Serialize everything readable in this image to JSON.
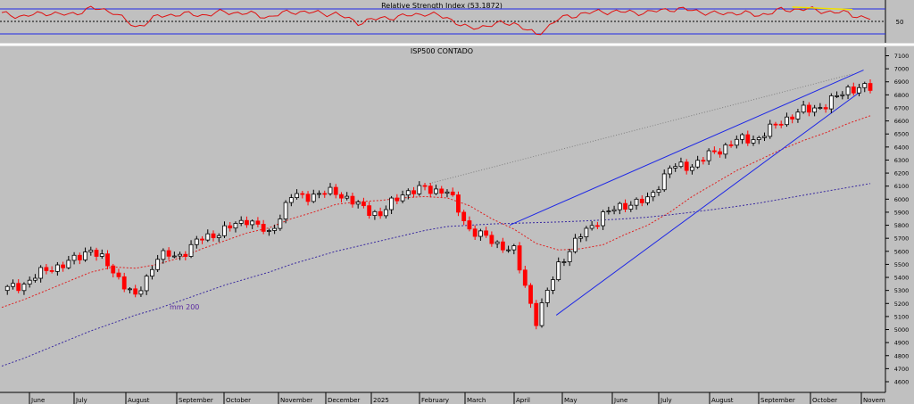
{
  "chart_data": [
    {
      "type": "line",
      "title": "Relative Strength Index (53.1872)",
      "indicator_value": 53.1872,
      "ylim": [
        0,
        100
      ],
      "levels": [
        70,
        50,
        30
      ],
      "yticks": [
        "50"
      ],
      "legend": "none",
      "grid": false,
      "x": [
        "2024-05-20",
        "2024-06-03",
        "2024-06-17",
        "2024-07-01",
        "2024-07-15",
        "2024-07-29",
        "2024-08-05",
        "2024-08-19",
        "2024-09-02",
        "2024-09-16",
        "2024-09-30",
        "2024-10-14",
        "2024-10-28",
        "2024-11-11",
        "2024-11-25",
        "2024-12-09",
        "2024-12-23",
        "2025-01-06",
        "2025-01-20",
        "2025-02-03",
        "2025-02-17",
        "2025-03-03",
        "2025-03-17",
        "2025-03-31",
        "2025-04-07",
        "2025-04-21",
        "2025-05-05",
        "2025-05-19",
        "2025-06-02",
        "2025-06-16",
        "2025-06-30",
        "2025-07-14",
        "2025-07-28",
        "2025-08-11",
        "2025-08-25",
        "2025-09-08",
        "2025-09-22",
        "2025-10-06",
        "2025-10-20",
        "2025-11-03"
      ],
      "series": [
        {
          "values": [
            62,
            58,
            64,
            60,
            71,
            66,
            40,
            58,
            62,
            60,
            65,
            63,
            57,
            66,
            64,
            62,
            48,
            55,
            58,
            63,
            56,
            38,
            45,
            48,
            28,
            54,
            62,
            66,
            65,
            64,
            70,
            68,
            62,
            64,
            60,
            68,
            70,
            66,
            63,
            53.19
          ]
        }
      ]
    },
    {
      "type": "candlestick",
      "title": "ISP500 CONTADO",
      "ylim": [
        4550,
        7150
      ],
      "yticks": [
        4600,
        4700,
        4800,
        4900,
        5000,
        5100,
        5200,
        5300,
        5400,
        5500,
        5600,
        5700,
        5800,
        5900,
        6000,
        6100,
        6200,
        6300,
        6400,
        6500,
        6600,
        6700,
        6800,
        6900,
        7000,
        7100
      ],
      "xticks": [
        "June",
        "July",
        "August",
        "September",
        "October",
        "November",
        "December",
        "2025",
        "February",
        "March",
        "April",
        "May",
        "June",
        "July",
        "August",
        "September",
        "October",
        "Novem"
      ],
      "annotations": [
        "mm 200"
      ],
      "legend": "none",
      "grid": false,
      "colors": {
        "up": "#000000",
        "down": "#ff0000",
        "ma_short": "#e02020",
        "ma_long": "#3a2aa0",
        "trendline": "#1e28e6",
        "rsi": "#e01010"
      },
      "x": [
        "2024-05-20",
        "2024-06-03",
        "2024-06-17",
        "2024-07-01",
        "2024-07-15",
        "2024-07-29",
        "2024-08-05",
        "2024-08-19",
        "2024-09-02",
        "2024-09-16",
        "2024-09-30",
        "2024-10-14",
        "2024-10-28",
        "2024-11-11",
        "2024-11-25",
        "2024-12-09",
        "2024-12-23",
        "2025-01-06",
        "2025-01-20",
        "2025-02-03",
        "2025-02-17",
        "2025-03-03",
        "2025-03-17",
        "2025-03-31",
        "2025-04-07",
        "2025-04-21",
        "2025-05-05",
        "2025-05-19",
        "2025-06-02",
        "2025-06-16",
        "2025-06-30",
        "2025-07-14",
        "2025-07-28",
        "2025-08-11",
        "2025-08-25",
        "2025-09-08",
        "2025-09-22",
        "2025-10-06",
        "2025-10-20",
        "2025-11-03"
      ],
      "series": [
        {
          "name": "close",
          "values": [
            5300,
            5350,
            5460,
            5510,
            5620,
            5450,
            5240,
            5560,
            5570,
            5700,
            5760,
            5850,
            5730,
            6020,
            6030,
            6060,
            5950,
            5880,
            6050,
            6080,
            6060,
            5770,
            5680,
            5600,
            5070,
            5500,
            5720,
            5880,
            5960,
            5990,
            6240,
            6260,
            6360,
            6450,
            6470,
            6600,
            6680,
            6720,
            6850,
            6850
          ]
        },
        {
          "name": "moving average (short)",
          "values": [
            5170,
            5230,
            5300,
            5370,
            5440,
            5480,
            5470,
            5500,
            5550,
            5620,
            5680,
            5740,
            5780,
            5850,
            5900,
            5960,
            5980,
            5990,
            6010,
            6020,
            6010,
            5950,
            5850,
            5770,
            5660,
            5610,
            5620,
            5650,
            5730,
            5800,
            5900,
            6020,
            6120,
            6220,
            6300,
            6380,
            6450,
            6510,
            6580,
            6640
          ]
        },
        {
          "name": "mm 200",
          "values": [
            4720,
            4780,
            4850,
            4920,
            4990,
            5050,
            5110,
            5160,
            5220,
            5280,
            5340,
            5390,
            5440,
            5500,
            5550,
            5600,
            5640,
            5680,
            5720,
            5760,
            5790,
            5800,
            5810,
            5815,
            5820,
            5825,
            5832,
            5840,
            5850,
            5862,
            5880,
            5900,
            5922,
            5945,
            5970,
            6000,
            6030,
            6060,
            6090,
            6120
          ]
        }
      ]
    }
  ]
}
